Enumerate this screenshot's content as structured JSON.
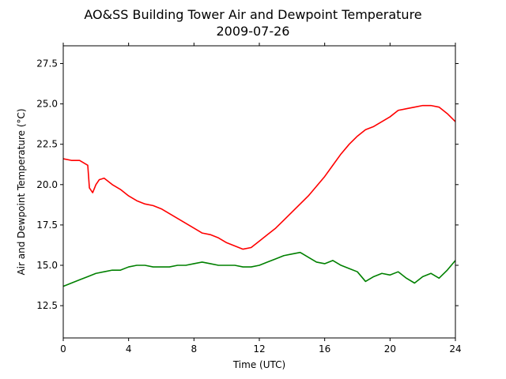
{
  "chart_data": {
    "type": "line",
    "title": "AO&SS Building Tower Air and Dewpoint Temperature",
    "subtitle": "2009-07-26",
    "xlabel": "Time (UTC)",
    "ylabel": "Air and Dewpoint Temperature (°C)",
    "xlim": [
      0,
      24
    ],
    "ylim": [
      10.5,
      28.6
    ],
    "x_ticks": [
      0,
      4,
      8,
      12,
      16,
      20,
      24
    ],
    "x_tick_labels": [
      "0",
      "4",
      "8",
      "12",
      "16",
      "20",
      "24"
    ],
    "y_ticks": [
      12.5,
      15.0,
      17.5,
      20.0,
      22.5,
      25.0,
      27.5
    ],
    "y_tick_labels": [
      "12.5",
      "15.0",
      "17.5",
      "20.0",
      "22.5",
      "25.0",
      "27.5"
    ],
    "grid": false,
    "legend": "none",
    "series": [
      {
        "color": "#ff0000",
        "x": [
          0,
          0.5,
          1.0,
          1.5,
          1.6,
          1.8,
          2.0,
          2.2,
          2.5,
          3.0,
          3.5,
          4.0,
          4.5,
          5.0,
          5.5,
          6.0,
          6.5,
          7.0,
          7.5,
          8.0,
          8.5,
          9.0,
          9.5,
          10.0,
          10.5,
          11.0,
          11.5,
          12.0,
          12.5,
          13.0,
          13.5,
          14.0,
          14.5,
          15.0,
          15.5,
          16.0,
          16.5,
          17.0,
          17.5,
          18.0,
          18.5,
          19.0,
          19.5,
          20.0,
          20.5,
          21.0,
          21.5,
          22.0,
          22.5,
          23.0,
          23.5,
          24.0
        ],
        "values": [
          21.6,
          21.5,
          21.5,
          21.2,
          19.8,
          19.5,
          20.0,
          20.3,
          20.4,
          20.0,
          19.7,
          19.3,
          19.0,
          18.8,
          18.7,
          18.5,
          18.2,
          17.9,
          17.6,
          17.3,
          17.0,
          16.9,
          16.7,
          16.4,
          16.2,
          16.0,
          16.1,
          16.5,
          16.9,
          17.3,
          17.8,
          18.3,
          18.8,
          19.3,
          19.9,
          20.5,
          21.2,
          21.9,
          22.5,
          23.0,
          23.4,
          23.6,
          23.9,
          24.2,
          24.6,
          24.7,
          24.8,
          24.9,
          24.9,
          24.8,
          24.4,
          23.9
        ]
      },
      {
        "color": "#008000",
        "x": [
          0,
          0.5,
          1.0,
          1.5,
          2.0,
          2.5,
          3.0,
          3.5,
          4.0,
          4.5,
          5.0,
          5.5,
          6.0,
          6.5,
          7.0,
          7.5,
          8.0,
          8.5,
          9.0,
          9.5,
          10.0,
          10.5,
          11.0,
          11.5,
          12.0,
          12.5,
          13.0,
          13.5,
          14.0,
          14.5,
          15.0,
          15.5,
          16.0,
          16.5,
          17.0,
          17.5,
          18.0,
          18.5,
          19.0,
          19.5,
          20.0,
          20.5,
          21.0,
          21.5,
          22.0,
          22.5,
          23.0,
          23.5,
          24.0
        ],
        "values": [
          13.7,
          13.9,
          14.1,
          14.3,
          14.5,
          14.6,
          14.7,
          14.7,
          14.9,
          15.0,
          15.0,
          14.9,
          14.9,
          14.9,
          15.0,
          15.0,
          15.1,
          15.2,
          15.1,
          15.0,
          15.0,
          15.0,
          14.9,
          14.9,
          15.0,
          15.2,
          15.4,
          15.6,
          15.7,
          15.8,
          15.5,
          15.2,
          15.1,
          15.3,
          15.0,
          14.8,
          14.6,
          14.0,
          14.3,
          14.5,
          14.4,
          14.6,
          14.2,
          13.9,
          14.3,
          14.5,
          14.2,
          14.7,
          15.3
        ]
      }
    ]
  }
}
